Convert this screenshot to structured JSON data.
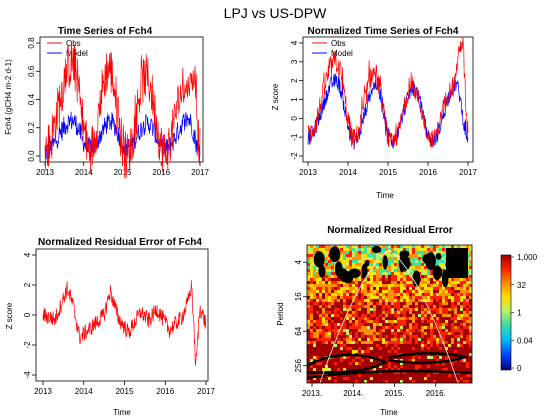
{
  "figure_title": "LPJ vs US-DPW",
  "chart_data": [
    {
      "type": "line",
      "title": "Time Series of Fch4",
      "xlabel": "",
      "ylabel": "Fch4 (gCH4 m-2 d-1)",
      "xlim": [
        2013,
        2017
      ],
      "ylim": [
        0,
        0.8
      ],
      "x_ticks": [
        "2013",
        "2014",
        "2015",
        "2016",
        "2017"
      ],
      "y_ticks": [
        "0.0",
        "0.2",
        "0.4",
        "0.6",
        "0.8"
      ],
      "legend": "top-left",
      "series": [
        {
          "name": "Obs",
          "color": "#ff0000",
          "peaks": [
            [
              2013.7,
              0.66
            ],
            [
              2014.65,
              0.62
            ],
            [
              2015.6,
              0.56
            ],
            [
              2016.55,
              0.45
            ],
            [
              2016.85,
              0.55
            ]
          ],
          "troughs": [
            [
              2013.0,
              0.05
            ],
            [
              2014.15,
              0.04
            ],
            [
              2015.1,
              0.0
            ],
            [
              2016.1,
              0.02
            ],
            [
              2017.0,
              0.05
            ]
          ]
        },
        {
          "name": "Model",
          "color": "#0000ff",
          "peaks": [
            [
              2013.7,
              0.25
            ],
            [
              2014.7,
              0.24
            ],
            [
              2015.65,
              0.23
            ],
            [
              2016.7,
              0.26
            ]
          ],
          "troughs": [
            [
              2013.0,
              0.03
            ],
            [
              2014.15,
              0.05
            ],
            [
              2015.1,
              0.06
            ],
            [
              2016.1,
              0.05
            ],
            [
              2017.0,
              0.04
            ]
          ]
        }
      ]
    },
    {
      "type": "line",
      "title": "Normalized Time Series of Fch4",
      "xlabel": "Time",
      "ylabel": "Z score",
      "xlim": [
        2013,
        2017
      ],
      "ylim": [
        -2,
        4
      ],
      "x_ticks": [
        "2013",
        "2014",
        "2015",
        "2016",
        "2017"
      ],
      "y_ticks": [
        "-2",
        "-1",
        "0",
        "1",
        "2",
        "3",
        "4"
      ],
      "legend": "top-left",
      "series": [
        {
          "name": "Obs",
          "color": "#ff0000",
          "peaks": [
            [
              2013.7,
              3.0
            ],
            [
              2014.65,
              2.4
            ],
            [
              2015.6,
              1.6
            ],
            [
              2016.6,
              1.6
            ],
            [
              2016.85,
              4.0
            ]
          ],
          "troughs": [
            [
              2013.0,
              -0.9
            ],
            [
              2014.15,
              -1.1
            ],
            [
              2015.1,
              -1.4
            ],
            [
              2016.1,
              -1.1
            ],
            [
              2017.0,
              -0.8
            ]
          ]
        },
        {
          "name": "Model",
          "color": "#0000ff",
          "peaks": [
            [
              2013.7,
              2.0
            ],
            [
              2014.7,
              1.8
            ],
            [
              2015.65,
              1.6
            ],
            [
              2016.7,
              1.8
            ]
          ],
          "troughs": [
            [
              2013.0,
              -1.0
            ],
            [
              2014.15,
              -1.2
            ],
            [
              2015.1,
              -1.2
            ],
            [
              2016.1,
              -1.2
            ],
            [
              2017.0,
              -1.0
            ]
          ]
        }
      ]
    },
    {
      "type": "line",
      "title": "Normalized Residual Error of Fch4",
      "xlabel": "Time",
      "ylabel": "Z score",
      "xlim": [
        2013,
        2017
      ],
      "ylim": [
        -4,
        4
      ],
      "x_ticks": [
        "2013",
        "2014",
        "2015",
        "2016",
        "2017"
      ],
      "y_ticks": [
        "-4",
        "-2",
        "0",
        "2",
        "4"
      ],
      "series": [
        {
          "name": "",
          "color": "#ff0000",
          "points": [
            [
              2013.0,
              0.0
            ],
            [
              2013.3,
              -0.3
            ],
            [
              2013.6,
              1.8
            ],
            [
              2013.75,
              0.5
            ],
            [
              2013.9,
              -1.5
            ],
            [
              2014.2,
              -0.8
            ],
            [
              2014.5,
              0.0
            ],
            [
              2014.65,
              1.6
            ],
            [
              2014.85,
              -0.2
            ],
            [
              2015.1,
              -1.2
            ],
            [
              2015.4,
              0.2
            ],
            [
              2015.6,
              -0.4
            ],
            [
              2015.8,
              0.4
            ],
            [
              2016.1,
              -1.0
            ],
            [
              2016.4,
              -0.2
            ],
            [
              2016.55,
              0.8
            ],
            [
              2016.65,
              2.0
            ],
            [
              2016.75,
              -3.5
            ],
            [
              2016.85,
              0.5
            ],
            [
              2017.0,
              -0.6
            ]
          ]
        }
      ]
    },
    {
      "type": "heatmap",
      "title": "Normalized Residual Error",
      "xlabel": "Time",
      "ylabel": "Period",
      "xlim": [
        2013,
        2017
      ],
      "ylim": [
        2,
        512
      ],
      "y_scale": "log2",
      "x_ticks": [
        "2013.",
        "2014.",
        "2015.",
        "2016."
      ],
      "y_ticks": [
        "4",
        "16",
        "64",
        "256"
      ],
      "colorbar_ticks": [
        "1,000",
        "32",
        "1",
        "0.04",
        "0"
      ],
      "colorbar_colors": [
        "#08007a",
        "#0040ff",
        "#00c0ff",
        "#40e0a0",
        "#c0f060",
        "#ffe000",
        "#ff9000",
        "#ff2000",
        "#a00000"
      ]
    }
  ]
}
